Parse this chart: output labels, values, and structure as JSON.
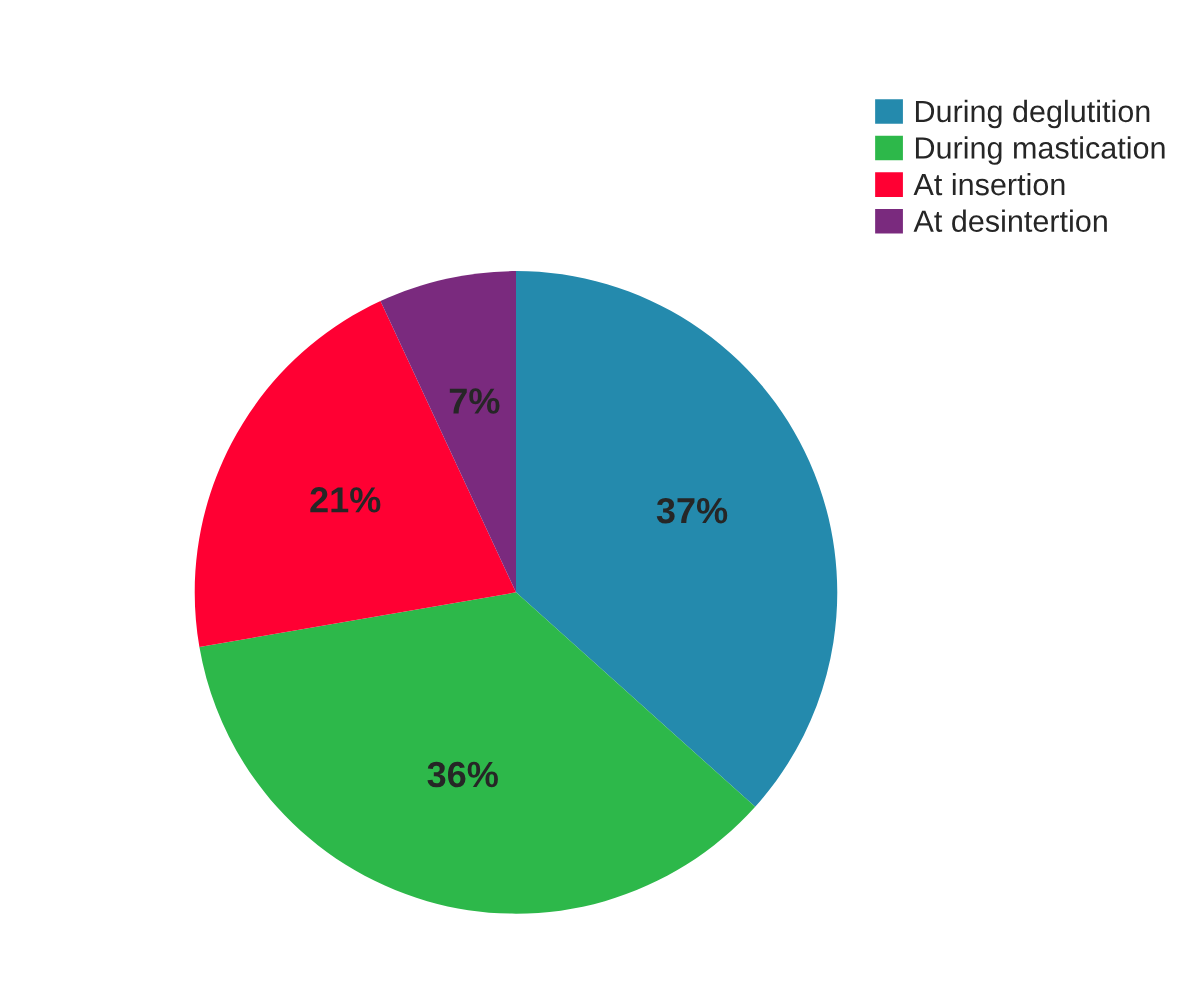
{
  "chart_data": {
    "type": "pie",
    "categories": [
      "During deglutition",
      "During mastication",
      "At insertion",
      "At desintertion"
    ],
    "values": [
      37,
      36,
      21,
      7
    ],
    "colors": [
      "#248aad",
      "#2db84a",
      "#ff0033",
      "#7a2a7e"
    ],
    "value_labels": [
      "37%",
      "36%",
      "21%",
      "7%"
    ],
    "legend": "top right"
  }
}
